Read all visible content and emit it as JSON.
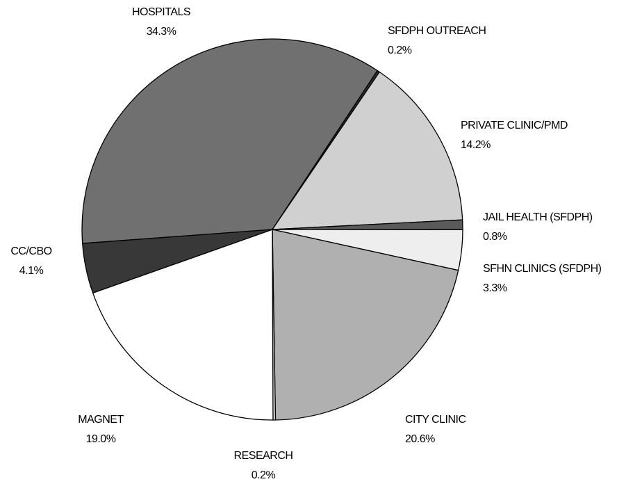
{
  "chart_data": {
    "type": "pie",
    "categories": [
      "HOSPITALS",
      "SFDPH OUTREACH",
      "PRIVATE CLINIC/PMD",
      "JAIL HEALTH (SFDPH)",
      "SFHN CLINICS (SFDPH)",
      "CITY CLINIC",
      "RESEARCH",
      "MAGNET",
      "CC/CBO"
    ],
    "values": [
      34.3,
      0.2,
      14.2,
      0.8,
      3.3,
      20.6,
      0.2,
      19.0,
      4.1
    ],
    "value_labels": [
      "34.3%",
      "0.2%",
      "14.2%",
      "0.8%",
      "3.3%",
      "20.6%",
      "0.2%",
      "19.0%",
      "4.1%"
    ],
    "colors": [
      "#707070",
      "#303030",
      "#d0d0d0",
      "#5a5a5a",
      "#eeeeee",
      "#b0b0b0",
      "#dcdcdc",
      "#ffffff",
      "#383838"
    ]
  }
}
